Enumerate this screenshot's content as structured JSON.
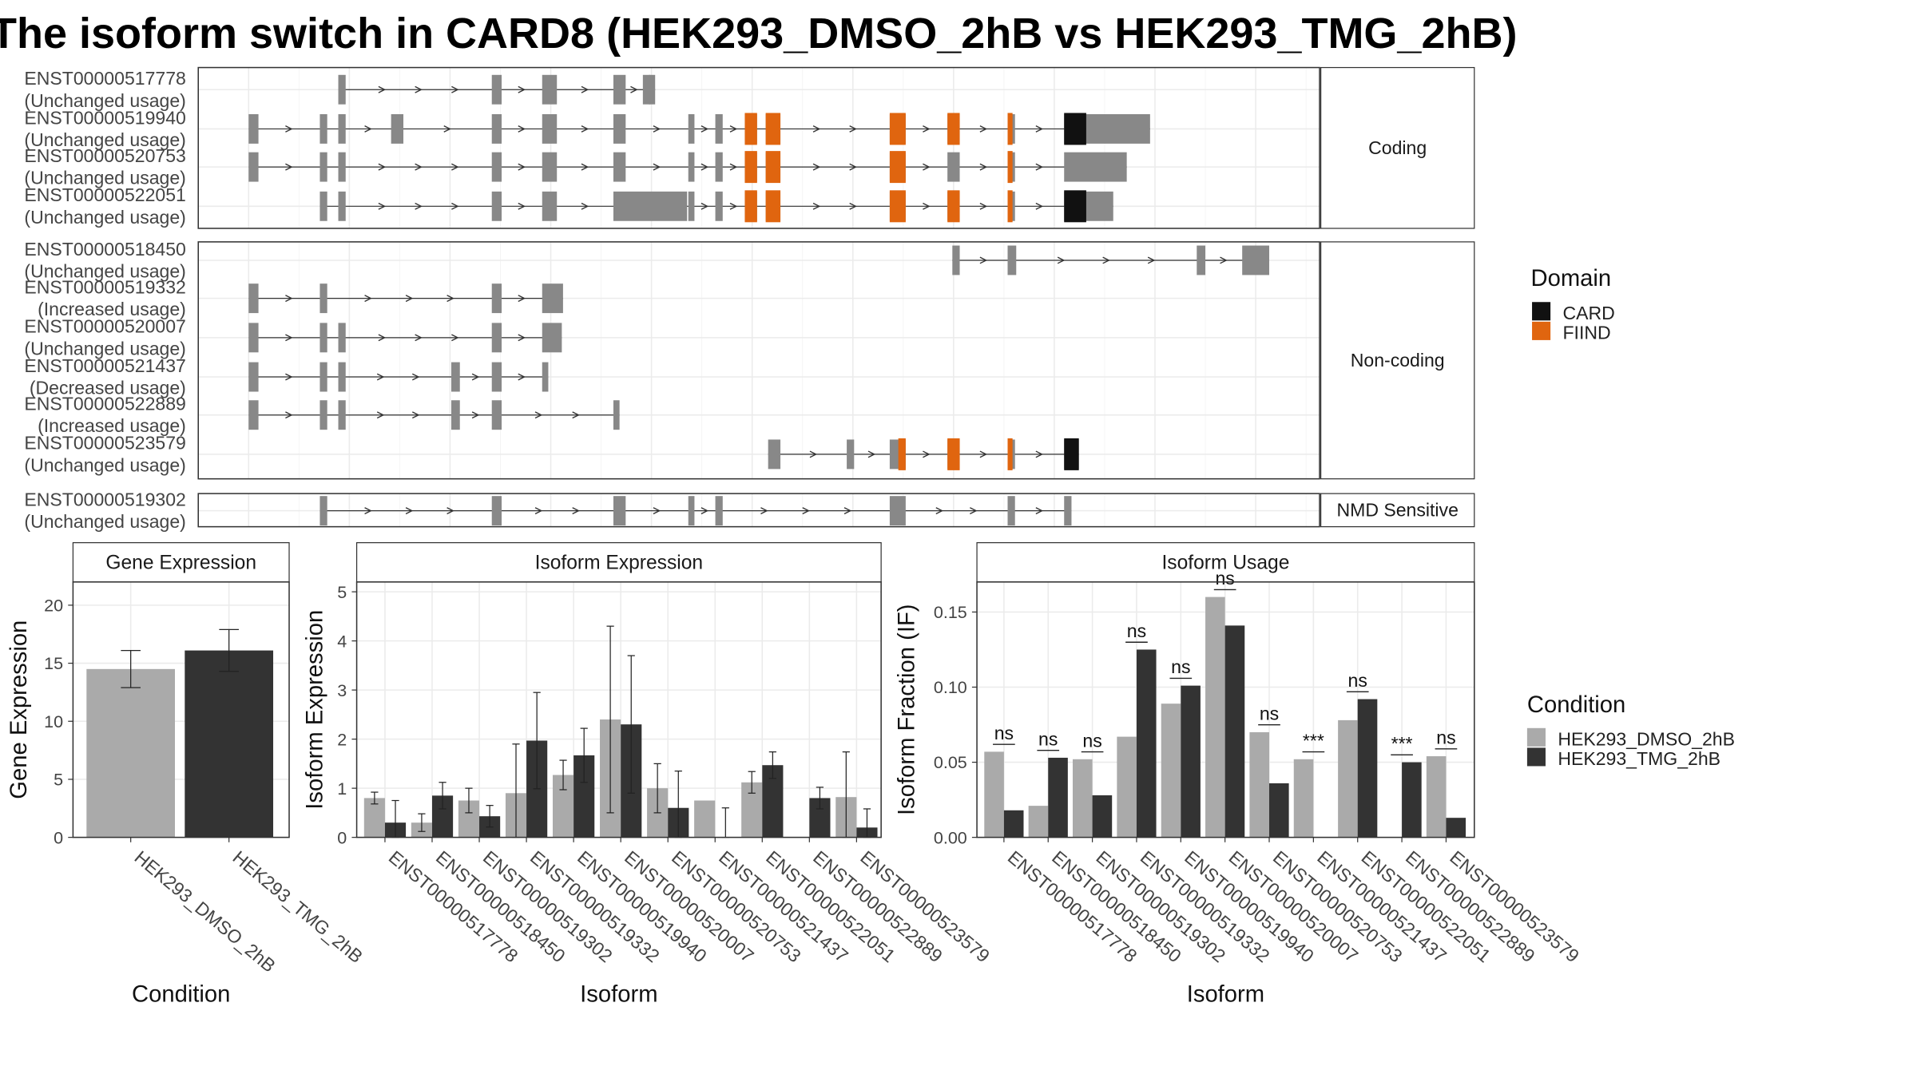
{
  "title": "The isoform switch in CARD8 (HEK293_DMSO_2hB vs HEK293_TMG_2hB)",
  "colors": {
    "FIIND": "#e0650f",
    "CARD": "#111111",
    "exon": "#888888",
    "DMSO": "#aaaaaa",
    "TMG": "#333333"
  },
  "structure": {
    "panels": [
      "Coding",
      "Non-coding",
      "NMD Sensitive"
    ],
    "transcripts": [
      {
        "id": "ENST00000517778",
        "usage": "(Unchanged usage)",
        "panel": "Coding"
      },
      {
        "id": "ENST00000519940",
        "usage": "(Unchanged usage)",
        "panel": "Coding"
      },
      {
        "id": "ENST00000520753",
        "usage": "(Unchanged usage)",
        "panel": "Coding"
      },
      {
        "id": "ENST00000522051",
        "usage": "(Unchanged usage)",
        "panel": "Coding"
      },
      {
        "id": "ENST00000518450",
        "usage": "(Unchanged usage)",
        "panel": "Non-coding"
      },
      {
        "id": "ENST00000519332",
        "usage": "(Increased usage)",
        "panel": "Non-coding"
      },
      {
        "id": "ENST00000520007",
        "usage": "(Unchanged usage)",
        "panel": "Non-coding"
      },
      {
        "id": "ENST00000521437",
        "usage": "(Decreased usage)",
        "panel": "Non-coding"
      },
      {
        "id": "ENST00000522889",
        "usage": "(Increased usage)",
        "panel": "Non-coding"
      },
      {
        "id": "ENST00000523579",
        "usage": "(Unchanged usage)",
        "panel": "Non-coding"
      },
      {
        "id": "ENST00000519302",
        "usage": "(Unchanged usage)",
        "panel": "NMD Sensitive"
      }
    ],
    "domain_legend": {
      "title": "Domain",
      "items": [
        "CARD",
        "FIIND"
      ]
    }
  },
  "condition_legend": {
    "title": "Condition",
    "items": [
      "HEK293_DMSO_2hB",
      "HEK293_TMG_2hB"
    ]
  },
  "chart_data": [
    {
      "type": "bar",
      "title": "Gene Expression",
      "xlabel": "Condition",
      "ylabel": "Gene Expression",
      "categories": [
        "HEK293_DMSO_2hB",
        "HEK293_TMG_2hB"
      ],
      "values": [
        14.5,
        16.1
      ],
      "errors": [
        1.6,
        1.8
      ],
      "ylim": [
        0,
        22
      ],
      "yticks": [
        0,
        5,
        10,
        15,
        20
      ]
    },
    {
      "type": "bar",
      "title": "Isoform Expression",
      "xlabel": "Isoform",
      "ylabel": "Isoform Expression",
      "categories": [
        "ENST00000517778",
        "ENST00000518450",
        "ENST00000519302",
        "ENST00000519332",
        "ENST00000519940",
        "ENST00000520007",
        "ENST00000520753",
        "ENST00000521437",
        "ENST00000522051",
        "ENST00000522889",
        "ENST00000523579"
      ],
      "series": [
        {
          "name": "HEK293_DMSO_2hB",
          "values": [
            0.8,
            0.3,
            0.75,
            0.9,
            1.27,
            2.4,
            1.0,
            0.75,
            1.12,
            0.0,
            0.82
          ],
          "errors": [
            0.12,
            0.18,
            0.25,
            1.0,
            0.3,
            1.9,
            0.5,
            0.0,
            0.22,
            0.0,
            0.92
          ]
        },
        {
          "name": "HEK293_TMG_2hB",
          "values": [
            0.3,
            0.85,
            0.43,
            1.97,
            1.67,
            2.3,
            0.6,
            0.0,
            1.47,
            0.8,
            0.2
          ]
        }
      ],
      "tmg_errors": [
        0.45,
        0.27,
        0.22,
        0.98,
        0.55,
        1.4,
        0.75,
        0.6,
        0.27,
        0.22,
        0.38
      ],
      "ylim": [
        0,
        5.2
      ],
      "yticks": [
        0,
        1,
        2,
        3,
        4,
        5
      ]
    },
    {
      "type": "bar",
      "title": "Isoform Usage",
      "xlabel": "Isoform",
      "ylabel": "Isoform Fraction (IF)",
      "categories": [
        "ENST00000517778",
        "ENST00000518450",
        "ENST00000519302",
        "ENST00000519332",
        "ENST00000519940",
        "ENST00000520007",
        "ENST00000520753",
        "ENST00000521437",
        "ENST00000522051",
        "ENST00000522889",
        "ENST00000523579"
      ],
      "series": [
        {
          "name": "HEK293_DMSO_2hB",
          "values": [
            0.057,
            0.021,
            0.052,
            0.067,
            0.089,
            0.16,
            0.07,
            0.052,
            0.078,
            0.0,
            0.054
          ]
        },
        {
          "name": "HEK293_TMG_2hB",
          "values": [
            0.018,
            0.053,
            0.028,
            0.125,
            0.101,
            0.141,
            0.036,
            0.0,
            0.092,
            0.05,
            0.013
          ]
        }
      ],
      "significance": [
        "ns",
        "ns",
        "ns",
        "ns",
        "ns",
        "ns",
        "ns",
        "***",
        "ns",
        "***",
        "ns"
      ],
      "ylim": [
        0,
        0.17
      ],
      "yticks": [
        "0.00",
        "0.05",
        "0.10",
        "0.15"
      ]
    }
  ]
}
